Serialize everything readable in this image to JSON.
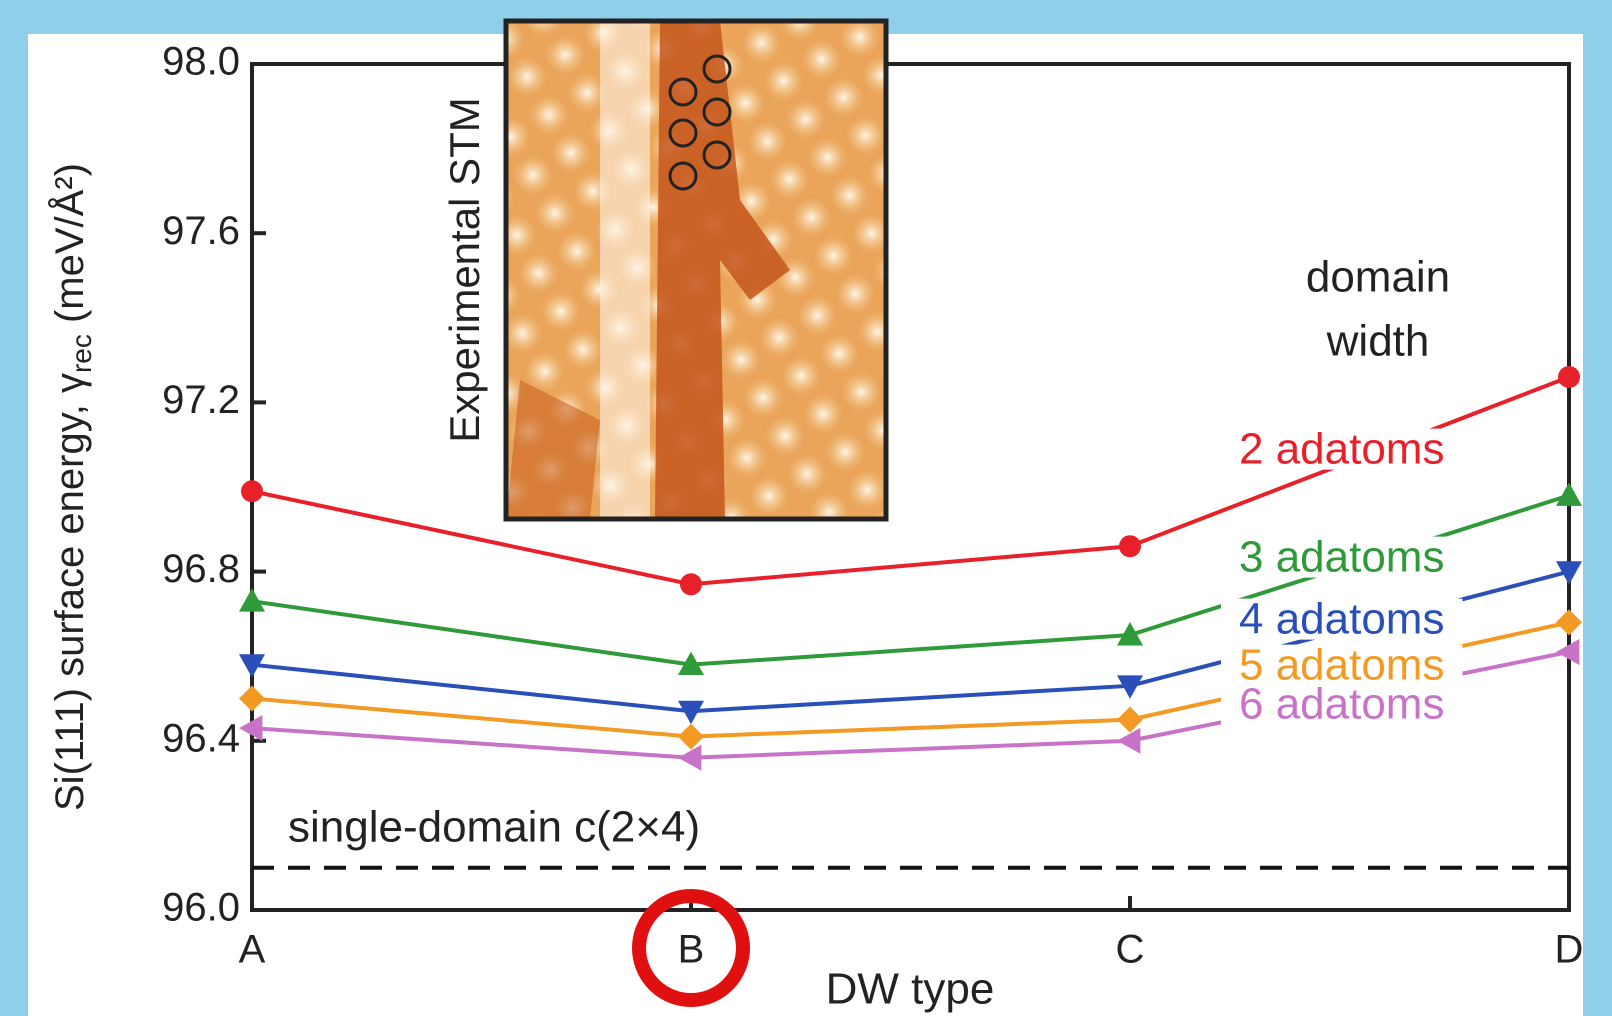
{
  "chart_data": {
    "type": "line",
    "inset_label": "Experimental STM",
    "x_label": "DW type",
    "y_label": {
      "text": "Si(111) surface energy, γ",
      "sub": "rec",
      "unit": " (meV/Å²)"
    },
    "legend_title": [
      "domain",
      "width"
    ],
    "categories": [
      "A",
      "B",
      "C",
      "D"
    ],
    "ylim": [
      96.0,
      98.0
    ],
    "yticks": [
      {
        "value": 96,
        "label": "96.0"
      },
      96.4,
      96.8,
      97.2,
      97.6,
      {
        "value": 98,
        "label": "98.0"
      }
    ],
    "reference": {
      "label": "single-domain c(2×4)",
      "value": 96.1
    },
    "series": [
      {
        "name": "2 adatoms",
        "color": "#e8202a",
        "marker": "circle",
        "values": [
          96.99,
          96.77,
          96.86,
          97.26
        ]
      },
      {
        "name": "3 adatoms",
        "color": "#2e9a3a",
        "marker": "triangle-up",
        "values": [
          96.73,
          96.58,
          96.65,
          96.98
        ]
      },
      {
        "name": "4 adatoms",
        "color": "#2a4fb8",
        "marker": "triangle-down",
        "values": [
          96.58,
          96.47,
          96.53,
          96.8
        ]
      },
      {
        "name": "5 adatoms",
        "color": "#f39a24",
        "marker": "diamond",
        "values": [
          96.5,
          96.41,
          96.45,
          96.68
        ]
      },
      {
        "name": "6 adatoms",
        "color": "#c873c8",
        "marker": "triangle-left",
        "values": [
          96.43,
          96.36,
          96.4,
          96.61
        ]
      }
    ]
  }
}
